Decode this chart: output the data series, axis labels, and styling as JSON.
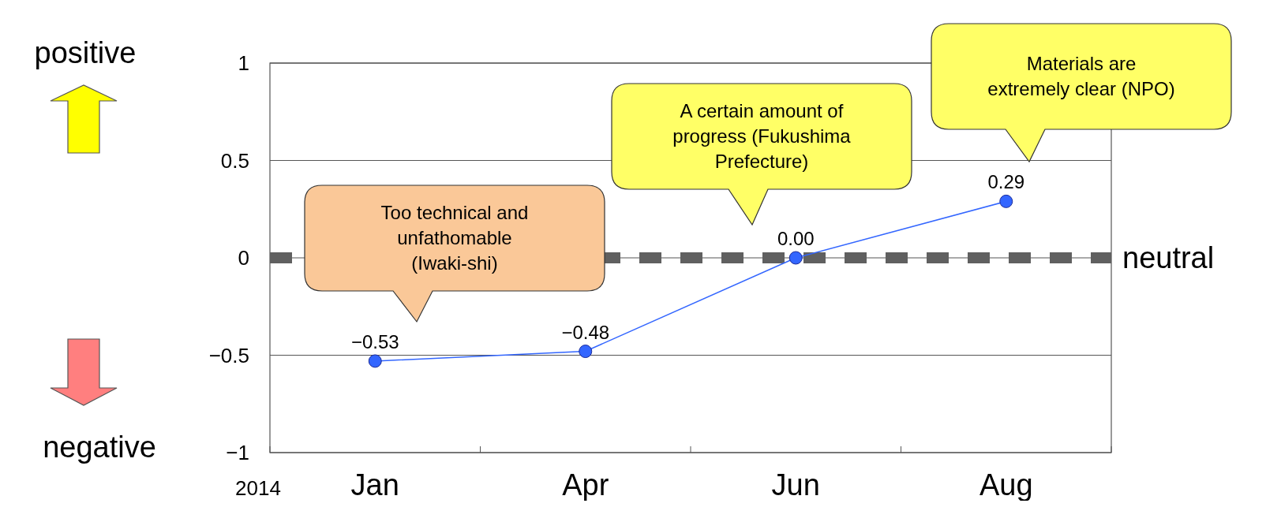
{
  "chart_data": {
    "type": "line",
    "categories": [
      "Jan",
      "Apr",
      "Jun",
      "Aug"
    ],
    "series": [
      {
        "color": "#3366ff",
        "values": [
          -0.53,
          -0.48,
          0,
          0.29
        ],
        "value_labels": [
          "−0.53",
          "−0.48",
          "0.00",
          "0.29"
        ]
      }
    ],
    "ylim": [
      -1,
      1
    ],
    "yticks": [
      1,
      0.5,
      0,
      {
        "value": -0.5,
        "label": "−0.5"
      },
      {
        "value": -1,
        "label": "−1"
      }
    ],
    "grid": "y",
    "marker": "circle",
    "ref_lines": [
      {
        "axis": "y",
        "value": 0,
        "label": "neutral",
        "color": "#606060",
        "line_style": "dashed"
      }
    ],
    "annotations": [
      "2014",
      "positive",
      "negative",
      "Too technical and\nunfathomable\n(Iwaki-shi)",
      "A certain amount of\nprogress (Fukushima\nPrefecture)",
      "Materials are\nextremely clear (NPO)"
    ]
  }
}
